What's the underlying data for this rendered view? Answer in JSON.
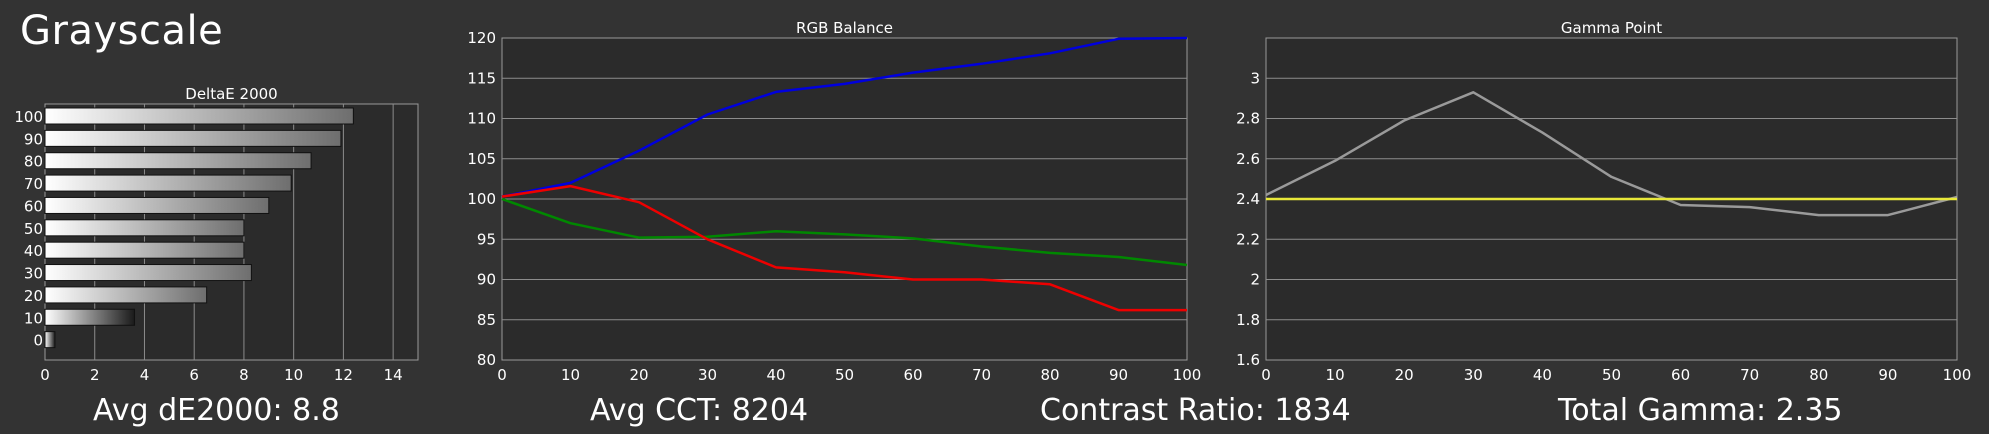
{
  "page": {
    "title": "Grayscale"
  },
  "stats": [
    {
      "label": "Avg dE2000:",
      "value": "8.8"
    },
    {
      "label": "Avg CCT:",
      "value": "8204"
    },
    {
      "label": "Contrast Ratio:",
      "value": "1834"
    },
    {
      "label": "Total Gamma:",
      "value": "2.35"
    }
  ],
  "chart_data": [
    {
      "type": "bar",
      "orientation": "horizontal",
      "title": "DeltaE 2000",
      "categories": [
        "100",
        "90",
        "80",
        "70",
        "60",
        "50",
        "40",
        "30",
        "20",
        "10",
        "0"
      ],
      "values": [
        12.4,
        11.9,
        10.7,
        9.9,
        9.0,
        8.0,
        8.0,
        8.3,
        6.5,
        3.6,
        0.4
      ],
      "xlim": [
        0,
        15
      ],
      "xticks": [
        "0",
        "2",
        "4",
        "6",
        "8",
        "10",
        "12",
        "14"
      ],
      "grid": true
    },
    {
      "type": "line",
      "title": "RGB Balance",
      "x": [
        0,
        10,
        20,
        30,
        40,
        50,
        60,
        70,
        80,
        90,
        100
      ],
      "xlim": [
        0,
        100
      ],
      "ylim": [
        80,
        120
      ],
      "yticks": [
        "80",
        "85",
        "90",
        "95",
        "100",
        "105",
        "110",
        "115",
        "120"
      ],
      "xticks": [
        "0",
        "10",
        "20",
        "30",
        "40",
        "50",
        "60",
        "70",
        "80",
        "90",
        "100"
      ],
      "grid": true,
      "series": [
        {
          "color": "#0000dd",
          "values": [
            100.3,
            102.0,
            106.0,
            110.5,
            113.3,
            114.3,
            115.7,
            116.8,
            118.1,
            119.9,
            120.0
          ]
        },
        {
          "color": "#008800",
          "values": [
            100.0,
            97.0,
            95.2,
            95.3,
            96.0,
            95.6,
            95.1,
            94.1,
            93.3,
            92.8,
            91.8
          ]
        },
        {
          "color": "#ee0000",
          "values": [
            100.3,
            101.6,
            99.6,
            95.0,
            91.5,
            90.9,
            90.0,
            90.0,
            89.4,
            86.2,
            86.2
          ]
        }
      ]
    },
    {
      "type": "line",
      "title": "Gamma Point",
      "x": [
        0,
        10,
        20,
        30,
        40,
        50,
        60,
        70,
        80,
        90,
        100
      ],
      "xlim": [
        0,
        100
      ],
      "ylim": [
        1.6,
        3.2
      ],
      "yticks": [
        "1.6",
        "1.8",
        "2",
        "2.2",
        "2.4",
        "2.6",
        "2.8",
        "3"
      ],
      "xticks": [
        "0",
        "10",
        "20",
        "30",
        "40",
        "50",
        "60",
        "70",
        "80",
        "90",
        "100"
      ],
      "grid": true,
      "series": [
        {
          "color": "#9a9a9a",
          "values": [
            2.42,
            2.59,
            2.79,
            2.93,
            2.73,
            2.51,
            2.37,
            2.36,
            2.32,
            2.32,
            2.41
          ]
        },
        {
          "color": "#e8e83a",
          "values": [
            2.4,
            2.4,
            2.4,
            2.4,
            2.4,
            2.4,
            2.4,
            2.4,
            2.4,
            2.4,
            2.4
          ]
        }
      ]
    }
  ]
}
